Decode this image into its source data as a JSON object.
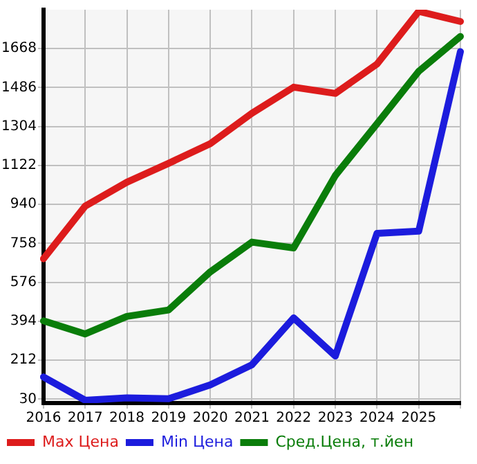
{
  "chart_data": {
    "type": "line",
    "categories": [
      "2016",
      "2017",
      "2018",
      "2019",
      "2020",
      "2021",
      "2022",
      "2023",
      "2024",
      "2025",
      null
    ],
    "series": [
      {
        "name": "Max Цена",
        "color": "#dd1c1c",
        "values": [
          686,
          932,
          1044,
          1132,
          1224,
          1366,
          1488,
          1459,
          1596,
          1842,
          1795
        ]
      },
      {
        "name": "Min Цена",
        "color": "#1c1cdd",
        "values": [
          134,
          25,
          36,
          32,
          97,
          191,
          410,
          232,
          805,
          815,
          1654
        ]
      },
      {
        "name": "Сред.Цена, т.йен",
        "color": "#0a7d0a",
        "values": [
          396,
          335,
          417,
          447,
          625,
          764,
          737,
          1075,
          1317,
          1562,
          1725
        ]
      }
    ],
    "ylim": [
      12,
      1850
    ],
    "yticks": [
      30,
      212,
      394,
      576,
      758,
      940,
      1122,
      1304,
      1486,
      1668
    ],
    "grid": true,
    "legend": "bottom",
    "marker": "none",
    "line_style": "solid"
  }
}
